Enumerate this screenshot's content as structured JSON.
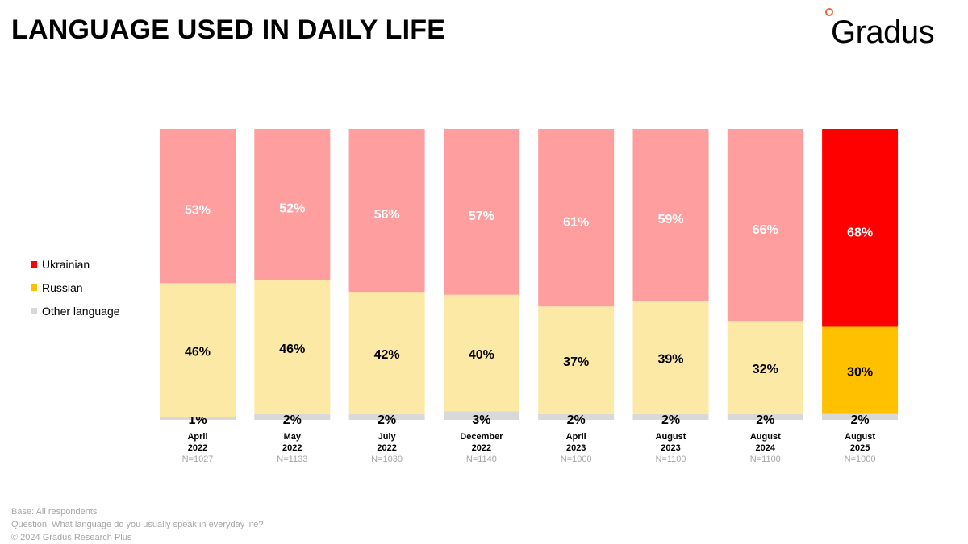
{
  "title": "LANGUAGE USED IN DAILY LIFE",
  "logo": {
    "text": "Gradus",
    "accent_color": "#f0633c"
  },
  "legend": [
    {
      "label": "Ukrainian",
      "color": "#ff0000"
    },
    {
      "label": "Russian",
      "color": "#ffc000"
    },
    {
      "label": "Other language",
      "color": "#d9d9d9"
    }
  ],
  "chart_data": {
    "type": "bar",
    "stacked": true,
    "normalized": true,
    "legend_position": "left",
    "grid": false,
    "categories": [
      [
        "April",
        "2022"
      ],
      [
        "May",
        "2022"
      ],
      [
        "July",
        "2022"
      ],
      [
        "December",
        "2022"
      ],
      [
        "April",
        "2023"
      ],
      [
        "August",
        "2023"
      ],
      [
        "August",
        "2024"
      ],
      [
        "August",
        "2025"
      ]
    ],
    "sample_sizes": [
      "N=1027",
      "N=1133",
      "N=1030",
      "N=1140",
      "N=1000",
      "N=1100",
      "N=1100",
      "N=1000"
    ],
    "series": [
      {
        "name": "Other language",
        "values": [
          1,
          2,
          2,
          3,
          2,
          2,
          2,
          2
        ],
        "labels": [
          "1%",
          "2%",
          "2%",
          "3%",
          "2%",
          "2%",
          "2%",
          "2%"
        ]
      },
      {
        "name": "Russian",
        "values": [
          46,
          46,
          42,
          40,
          37,
          39,
          32,
          30
        ],
        "labels": [
          "46%",
          "46%",
          "42%",
          "40%",
          "37%",
          "39%",
          "32%",
          "30%"
        ]
      },
      {
        "name": "Ukrainian",
        "values": [
          53,
          52,
          56,
          57,
          61,
          59,
          66,
          68
        ],
        "labels": [
          "53%",
          "52%",
          "56%",
          "57%",
          "61%",
          "59%",
          "66%",
          "68%"
        ]
      }
    ],
    "highlight_index": 7,
    "muted_colors": {
      "Ukrainian": "#fe9e9e",
      "Russian": "#fde9a6",
      "Other language": "#d9d9d9"
    },
    "highlight_colors": {
      "Ukrainian": "#ff0000",
      "Russian": "#ffc000",
      "Other language": "#d9d9d9"
    },
    "label_colors": {
      "Ukrainian": "#ffffff",
      "Russian": "#000000",
      "Other language": "#000000"
    }
  },
  "footer": {
    "base": "Base: All respondents",
    "question": "Question: What language do you usually speak in everyday life?",
    "copyright": "© 2024 Gradus Research Plus"
  }
}
